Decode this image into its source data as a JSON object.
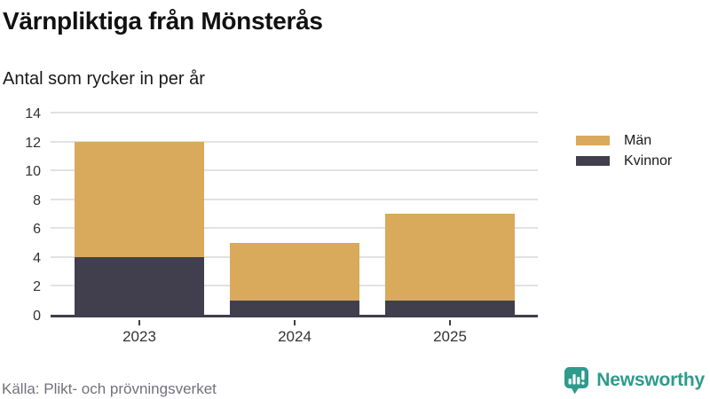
{
  "header": {
    "title": "Värnpliktiga från Mönsterås",
    "subtitle": "Antal som rycker in per år"
  },
  "chart_data": {
    "type": "bar",
    "stacked": true,
    "title": "Värnpliktiga från Mönsterås",
    "subtitle": "Antal som rycker in per år",
    "categories": [
      "2023",
      "2024",
      "2025"
    ],
    "series": [
      {
        "name": "Män",
        "color": "#d9a95c",
        "values": [
          8,
          4,
          6
        ]
      },
      {
        "name": "Kvinnor",
        "color": "#413f4e",
        "values": [
          4,
          1,
          1
        ]
      }
    ],
    "stack_order_bottom_to_top": [
      "Kvinnor",
      "Män"
    ],
    "totals": [
      12,
      5,
      7
    ],
    "xlabel": "",
    "ylabel": "",
    "ylim": [
      0,
      14
    ],
    "yticks": [
      0,
      2,
      4,
      6,
      8,
      10,
      12,
      14
    ],
    "grid": true,
    "legend_position": "right"
  },
  "footer": {
    "source": "Källa: Plikt- och prövningsverket",
    "brand": "Newsworthy"
  },
  "colors": {
    "man": "#d9a95c",
    "kvinnor": "#413f4e",
    "grid": "#e2e2e2",
    "axis": "#3f3e4d",
    "brand_teal": "#2e9b8c"
  }
}
